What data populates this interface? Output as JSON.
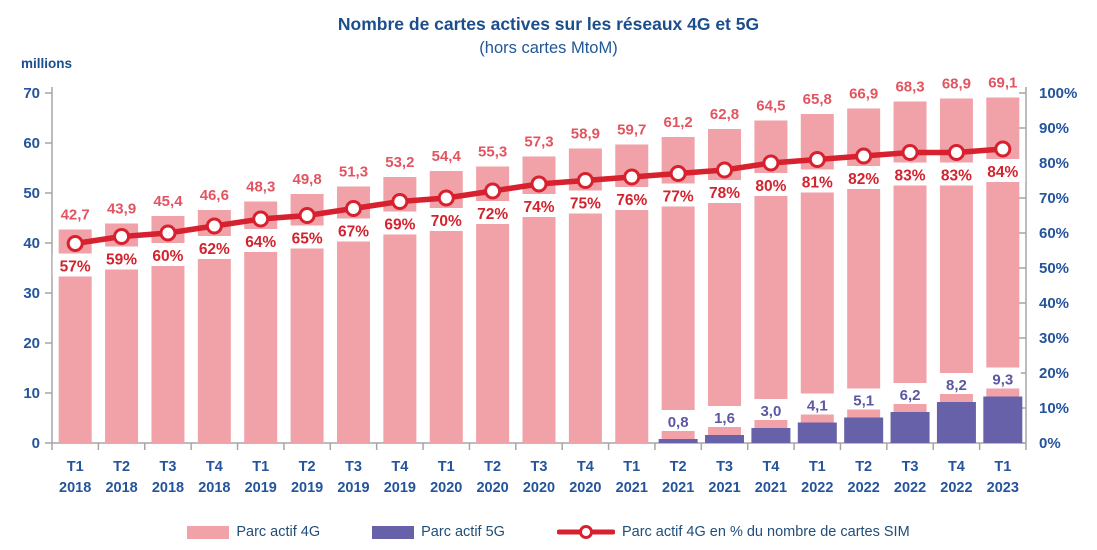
{
  "header": {
    "title": "Nombre de cartes actives sur les réseaux 4G et 5G",
    "subtitle": "(hors cartes MtoM)",
    "left_axis_unit_label": "millions"
  },
  "colors": {
    "bar_4g": "#F1A1A8",
    "bar_5g": "#6661A9",
    "line": "#D7212E",
    "value_label_4g": "#E25560",
    "value_label_5g": "#5C57A2",
    "percent_label": "#D2232E",
    "axis_text": "#24549C",
    "title_text": "#1B4E8C",
    "axis_line": "#A6A6A6"
  },
  "chart_data": {
    "type": "bar",
    "subtype": "combo-bar-line",
    "grid": false,
    "legend_position": "bottom",
    "categories": [
      {
        "quarter": "T1",
        "year": "2018"
      },
      {
        "quarter": "T2",
        "year": "2018"
      },
      {
        "quarter": "T3",
        "year": "2018"
      },
      {
        "quarter": "T4",
        "year": "2018"
      },
      {
        "quarter": "T1",
        "year": "2019"
      },
      {
        "quarter": "T2",
        "year": "2019"
      },
      {
        "quarter": "T3",
        "year": "2019"
      },
      {
        "quarter": "T4",
        "year": "2019"
      },
      {
        "quarter": "T1",
        "year": "2020"
      },
      {
        "quarter": "T2",
        "year": "2020"
      },
      {
        "quarter": "T3",
        "year": "2020"
      },
      {
        "quarter": "T4",
        "year": "2020"
      },
      {
        "quarter": "T1",
        "year": "2021"
      },
      {
        "quarter": "T2",
        "year": "2021"
      },
      {
        "quarter": "T3",
        "year": "2021"
      },
      {
        "quarter": "T4",
        "year": "2021"
      },
      {
        "quarter": "T1",
        "year": "2022"
      },
      {
        "quarter": "T2",
        "year": "2022"
      },
      {
        "quarter": "T3",
        "year": "2022"
      },
      {
        "quarter": "T4",
        "year": "2022"
      },
      {
        "quarter": "T1",
        "year": "2023"
      }
    ],
    "series": [
      {
        "name": "Parc actif 4G",
        "type": "bar",
        "axis": "left",
        "color": "#F1A1A8",
        "values": [
          42.7,
          43.9,
          45.4,
          46.6,
          48.3,
          49.8,
          51.3,
          53.2,
          54.4,
          55.3,
          57.3,
          58.9,
          59.7,
          61.2,
          62.8,
          64.5,
          65.8,
          66.9,
          68.3,
          68.9,
          69.1
        ],
        "labels": [
          "42,7",
          "43,9",
          "45,4",
          "46,6",
          "48,3",
          "49,8",
          "51,3",
          "53,2",
          "54,4",
          "55,3",
          "57,3",
          "58,9",
          "59,7",
          "61,2",
          "62,8",
          "64,5",
          "65,8",
          "66,9",
          "68,3",
          "68,9",
          "69,1"
        ]
      },
      {
        "name": "Parc actif 5G",
        "type": "bar",
        "axis": "left",
        "color": "#6661A9",
        "values": [
          null,
          null,
          null,
          null,
          null,
          null,
          null,
          null,
          null,
          null,
          null,
          null,
          null,
          0.8,
          1.6,
          3.0,
          4.1,
          5.1,
          6.2,
          8.2,
          9.3
        ],
        "labels": [
          null,
          null,
          null,
          null,
          null,
          null,
          null,
          null,
          null,
          null,
          null,
          null,
          null,
          "0,8",
          "1,6",
          "3,0",
          "4,1",
          "5,1",
          "6,2",
          "8,2",
          "9,3"
        ]
      },
      {
        "name": "Parc actif 4G en % du nombre de cartes SIM",
        "type": "line",
        "axis": "right",
        "color": "#D7212E",
        "values": [
          57,
          59,
          60,
          62,
          64,
          65,
          67,
          69,
          70,
          72,
          74,
          75,
          76,
          77,
          78,
          80,
          81,
          82,
          83,
          83,
          84
        ],
        "labels": [
          "57%",
          "59%",
          "60%",
          "62%",
          "64%",
          "65%",
          "67%",
          "69%",
          "70%",
          "72%",
          "74%",
          "75%",
          "76%",
          "77%",
          "78%",
          "80%",
          "81%",
          "82%",
          "83%",
          "83%",
          "84%"
        ]
      }
    ],
    "left_axis": {
      "min": 0,
      "max": 70,
      "step": 10,
      "ticks": [
        "0",
        "10",
        "20",
        "30",
        "40",
        "50",
        "60",
        "70"
      ]
    },
    "right_axis": {
      "min": 0,
      "max": 100,
      "step": 10,
      "ticks": [
        "0%",
        "10%",
        "20%",
        "30%",
        "40%",
        "50%",
        "60%",
        "70%",
        "80%",
        "90%",
        "100%"
      ]
    }
  },
  "legend": {
    "items": [
      {
        "label": "Parc actif 4G",
        "marker": "swatch",
        "color": "#F1A1A8"
      },
      {
        "label": "Parc actif 5G",
        "marker": "swatch",
        "color": "#6661A9"
      },
      {
        "label": "Parc actif 4G en % du nombre de cartes SIM",
        "marker": "line-circle",
        "color": "#D7212E"
      }
    ]
  }
}
